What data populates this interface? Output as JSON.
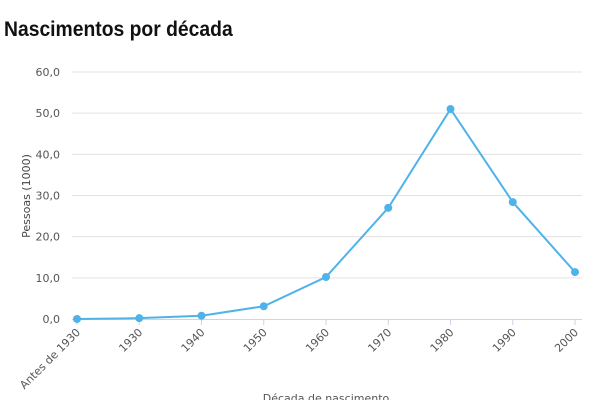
{
  "title": "Nascimentos por década",
  "chart_data": {
    "type": "line",
    "title": "Nascimentos por década",
    "xlabel": "Década de nascimento",
    "ylabel": "Pessoas (1000)",
    "categories": [
      "Antes de 1930",
      "1930",
      "1940",
      "1950",
      "1960",
      "1970",
      "1980",
      "1990",
      "2000"
    ],
    "values": [
      0.0,
      0.2,
      0.8,
      3.1,
      10.2,
      27.0,
      51.0,
      28.4,
      11.4
    ],
    "ylim": [
      0,
      60
    ],
    "yticks": [
      "0,0",
      "10,0",
      "20,0",
      "30,0",
      "40,0",
      "50,0",
      "60,0"
    ],
    "grid": true,
    "color": "#4fb3ea"
  }
}
